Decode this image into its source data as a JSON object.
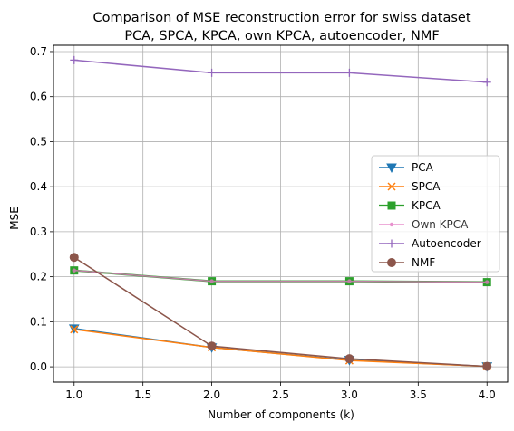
{
  "chart_data": {
    "type": "line",
    "title_line1": "Comparison of MSE reconstruction error for swiss dataset",
    "title_line2": "PCA, SPCA, KPCA, own KPCA, autoencoder, NMF",
    "xlabel": "Number of components (k)",
    "ylabel": "MSE",
    "xlim": [
      0.85,
      4.15
    ],
    "ylim": [
      -0.034,
      0.714
    ],
    "x": [
      1,
      2,
      3,
      4
    ],
    "xticks": [
      "1.0",
      "1.5",
      "2.0",
      "2.5",
      "3.0",
      "3.5",
      "4.0"
    ],
    "yticks": [
      "0.0",
      "0.1",
      "0.2",
      "0.3",
      "0.4",
      "0.5",
      "0.6",
      "0.7"
    ],
    "grid": true,
    "legend_position": "center-right",
    "series": [
      {
        "name": "PCA",
        "values": [
          0.085,
          0.043,
          0.015,
          0.001
        ],
        "color": "#1f77b4",
        "marker": "triangle-down"
      },
      {
        "name": "SPCA",
        "values": [
          0.083,
          0.043,
          0.014,
          0.001
        ],
        "color": "#ff7f0e",
        "marker": "x"
      },
      {
        "name": "KPCA",
        "values": [
          0.214,
          0.19,
          0.19,
          0.188
        ],
        "color": "#2ca02c",
        "marker": "square"
      },
      {
        "name": "Own KPCA",
        "values": [
          0.214,
          0.19,
          0.19,
          0.188
        ],
        "color": "#e377c2",
        "marker": "point"
      },
      {
        "name": "Autoencoder",
        "values": [
          0.681,
          0.653,
          0.653,
          0.632
        ],
        "color": "#9467bd",
        "marker": "plus"
      },
      {
        "name": "NMF",
        "values": [
          0.243,
          0.046,
          0.018,
          0.001
        ],
        "color": "#8c564b",
        "marker": "circle"
      }
    ]
  }
}
